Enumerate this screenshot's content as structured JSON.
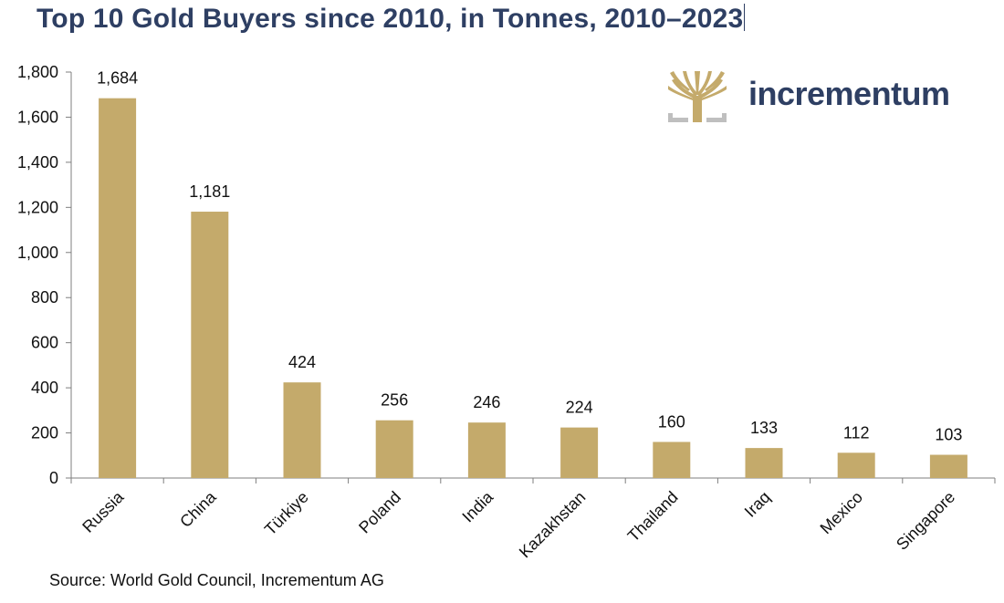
{
  "title": "Top 10 Gold Buyers since 2010, in Tonnes, 2010–2023",
  "source": "Source: World Gold Council, Incrementum AG",
  "logo": {
    "text": "incrementum",
    "icon": "tree-logo-icon"
  },
  "colors": {
    "bar": "#c4aa6b",
    "title": "#2e3f63",
    "axis": "#7f7f7f",
    "logo_gold": "#c4aa6b",
    "logo_gray": "#bfbfbf"
  },
  "chart_data": {
    "type": "bar",
    "title": "Top 10 Gold Buyers since 2010, in Tonnes, 2010–2023",
    "xlabel": "",
    "ylabel": "",
    "categories": [
      "Russia",
      "China",
      "Türkiye",
      "Poland",
      "India",
      "Kazakhstan",
      "Thailand",
      "Iraq",
      "Mexico",
      "Singapore"
    ],
    "values": [
      1684,
      1181,
      424,
      256,
      246,
      224,
      160,
      133,
      112,
      103
    ],
    "value_labels": [
      "1,684",
      "1,181",
      "424",
      "256",
      "246",
      "224",
      "160",
      "133",
      "112",
      "103"
    ],
    "ylim": [
      0,
      1800
    ],
    "yticks": [
      0,
      200,
      400,
      600,
      800,
      1000,
      1200,
      1400,
      1600,
      1800
    ],
    "ytick_labels": [
      "0",
      "200",
      "400",
      "600",
      "800",
      "1,000",
      "1,200",
      "1,400",
      "1,600",
      "1,800"
    ],
    "grid": false,
    "legend": "none"
  }
}
